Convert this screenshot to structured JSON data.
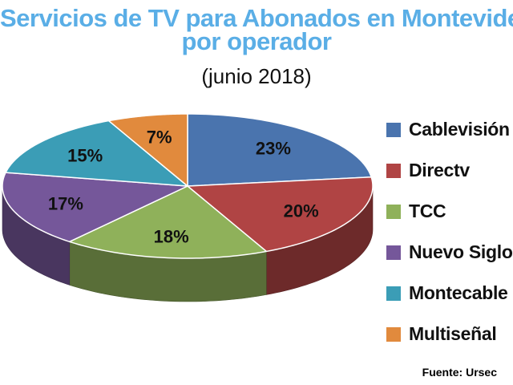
{
  "chart_data": {
    "type": "pie",
    "title": "Servicios de TV para Abonados en Montevideo",
    "title_line2": "por operador",
    "subtitle": "(junio 2018)",
    "source": "Fuente: Ursec",
    "legend_position": "right",
    "slices": [
      {
        "name": "Cablevisión",
        "value": 23,
        "label": "23%",
        "color": "#4a74ae"
      },
      {
        "name": "Directv",
        "value": 20,
        "label": "20%",
        "color": "#b04444"
      },
      {
        "name": "TCC",
        "value": 18,
        "label": "18%",
        "color": "#8fb15a"
      },
      {
        "name": "Nuevo Siglo",
        "value": 17,
        "label": "17%",
        "color": "#75579a"
      },
      {
        "name": "Montecable",
        "value": 15,
        "label": "15%",
        "color": "#3b9db6"
      },
      {
        "name": "Multiseñal",
        "value": 7,
        "label": "7%",
        "color": "#e18a3d"
      }
    ]
  }
}
